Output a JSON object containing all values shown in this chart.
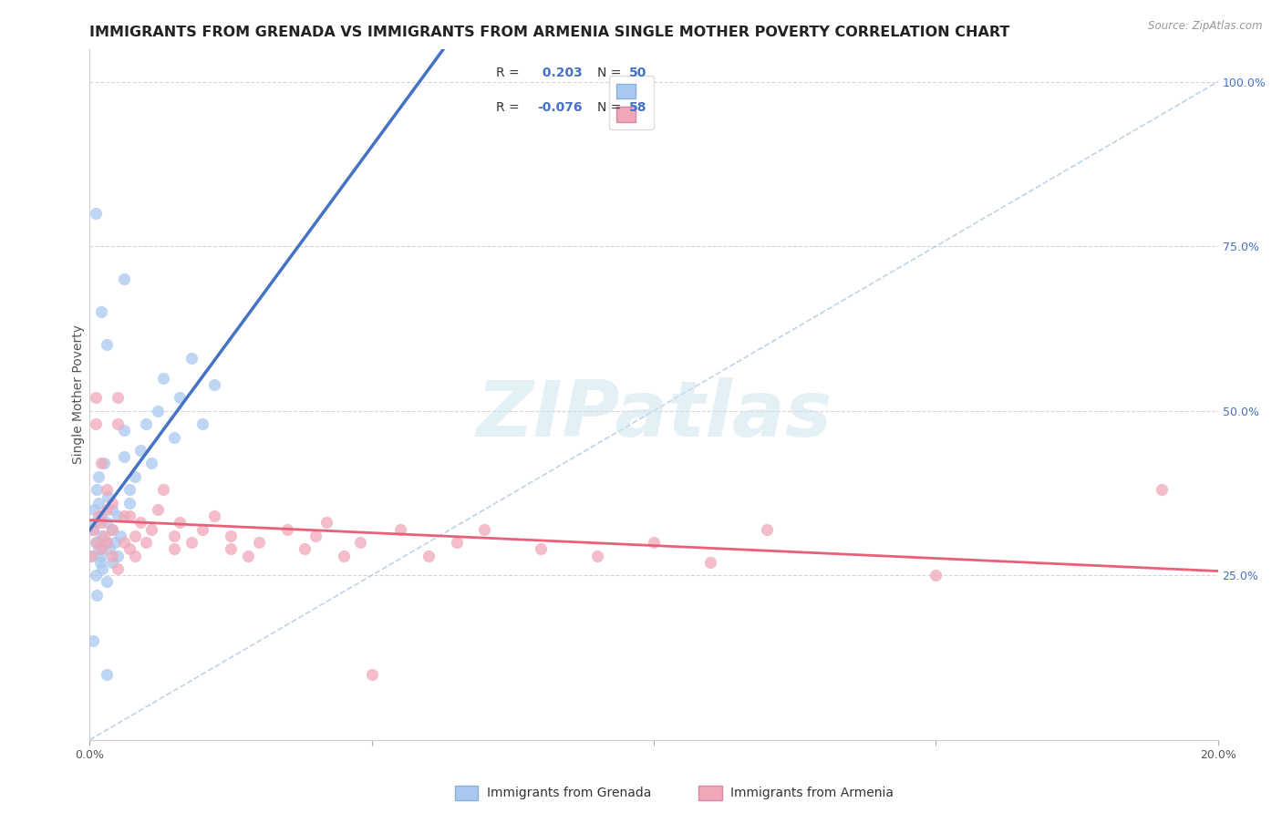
{
  "title": "IMMIGRANTS FROM GRENADA VS IMMIGRANTS FROM ARMENIA SINGLE MOTHER POVERTY CORRELATION CHART",
  "source": "Source: ZipAtlas.com",
  "ylabel": "Single Mother Poverty",
  "ylabel_right_ticks": [
    "100.0%",
    "75.0%",
    "50.0%",
    "25.0%"
  ],
  "ylabel_right_values": [
    1.0,
    0.75,
    0.5,
    0.25
  ],
  "xmin": 0.0,
  "xmax": 0.2,
  "ymin": 0.0,
  "ymax": 1.05,
  "legend1_label": "Immigrants from Grenada",
  "legend2_label": "Immigrants from Armenia",
  "r1": 0.203,
  "n1": 50,
  "r2": -0.076,
  "n2": 58,
  "color_grenada": "#a8c8f0",
  "color_armenia": "#f0a8b8",
  "color_line_grenada": "#4472c4",
  "color_line_armenia": "#e8607a",
  "color_diagonal": "#b0c8e0",
  "title_fontsize": 11.5,
  "axis_label_fontsize": 10,
  "tick_fontsize": 9,
  "legend_fontsize": 10,
  "grenada_x": [
    0.0003,
    0.0005,
    0.0006,
    0.0008,
    0.001,
    0.001,
    0.001,
    0.0012,
    0.0013,
    0.0015,
    0.0015,
    0.0016,
    0.0018,
    0.002,
    0.002,
    0.002,
    0.0022,
    0.0025,
    0.003,
    0.003,
    0.003,
    0.0032,
    0.0035,
    0.004,
    0.004,
    0.004,
    0.0045,
    0.005,
    0.005,
    0.0055,
    0.006,
    0.006,
    0.007,
    0.007,
    0.008,
    0.009,
    0.01,
    0.011,
    0.012,
    0.013,
    0.015,
    0.016,
    0.018,
    0.02,
    0.022,
    0.001,
    0.002,
    0.003,
    0.006,
    0.003
  ],
  "grenada_y": [
    0.28,
    0.32,
    0.15,
    0.35,
    0.3,
    0.33,
    0.25,
    0.38,
    0.22,
    0.4,
    0.29,
    0.36,
    0.27,
    0.31,
    0.34,
    0.28,
    0.26,
    0.42,
    0.3,
    0.33,
    0.24,
    0.37,
    0.29,
    0.32,
    0.27,
    0.35,
    0.3,
    0.28,
    0.34,
    0.31,
    0.47,
    0.43,
    0.36,
    0.38,
    0.4,
    0.44,
    0.48,
    0.42,
    0.5,
    0.55,
    0.46,
    0.52,
    0.58,
    0.48,
    0.54,
    0.8,
    0.65,
    0.6,
    0.7,
    0.1
  ],
  "armenia_x": [
    0.0003,
    0.0005,
    0.001,
    0.001,
    0.0012,
    0.0015,
    0.002,
    0.002,
    0.0025,
    0.003,
    0.003,
    0.004,
    0.004,
    0.005,
    0.005,
    0.006,
    0.007,
    0.007,
    0.008,
    0.009,
    0.01,
    0.011,
    0.012,
    0.013,
    0.015,
    0.015,
    0.016,
    0.018,
    0.02,
    0.022,
    0.025,
    0.025,
    0.028,
    0.03,
    0.035,
    0.038,
    0.04,
    0.042,
    0.045,
    0.048,
    0.05,
    0.055,
    0.06,
    0.065,
    0.07,
    0.08,
    0.09,
    0.1,
    0.11,
    0.12,
    0.002,
    0.003,
    0.004,
    0.005,
    0.006,
    0.008,
    0.19,
    0.15
  ],
  "armenia_y": [
    0.28,
    0.32,
    0.48,
    0.52,
    0.3,
    0.34,
    0.29,
    0.33,
    0.31,
    0.3,
    0.35,
    0.28,
    0.32,
    0.48,
    0.52,
    0.3,
    0.34,
    0.29,
    0.31,
    0.33,
    0.3,
    0.32,
    0.35,
    0.38,
    0.29,
    0.31,
    0.33,
    0.3,
    0.32,
    0.34,
    0.29,
    0.31,
    0.28,
    0.3,
    0.32,
    0.29,
    0.31,
    0.33,
    0.28,
    0.3,
    0.1,
    0.32,
    0.28,
    0.3,
    0.32,
    0.29,
    0.28,
    0.3,
    0.27,
    0.32,
    0.42,
    0.38,
    0.36,
    0.26,
    0.34,
    0.28,
    0.38,
    0.25
  ]
}
